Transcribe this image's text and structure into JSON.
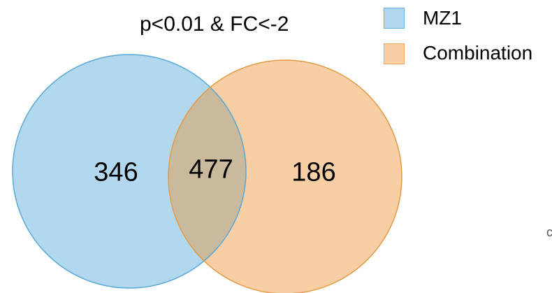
{
  "title": "p<0.01 & FC<-2",
  "legend": [
    {
      "label": "MZ1",
      "fill": "#b2d8ef",
      "stroke": "#6aafd8"
    },
    {
      "label": "Combination",
      "fill": "#f8cea4",
      "stroke": "#e9a765"
    }
  ],
  "sets": {
    "left": {
      "name": "MZ1",
      "fill": "#b2d8ef",
      "stroke": "#5aa8d6"
    },
    "right": {
      "name": "Combination",
      "fill": "#f8cea4",
      "stroke": "#e59a45"
    },
    "overlap_fill": "#c9b99d"
  },
  "counts": {
    "mz1_only": "346",
    "intersection": "477",
    "combination_only": "186"
  },
  "edge_mark": "c"
}
